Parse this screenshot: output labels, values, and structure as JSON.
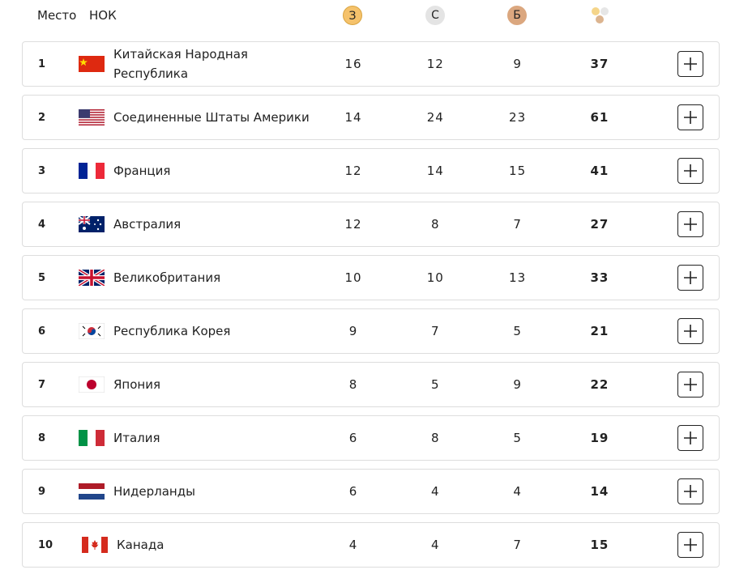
{
  "header": {
    "rank": "Место",
    "noc": "НОК",
    "gold": "З",
    "silver": "С",
    "bronze": "Б"
  },
  "table": {
    "rows": [
      [
        1,
        "Китайская Народная Республика",
        16,
        12,
        9,
        37
      ],
      [
        2,
        "Соединенные Штаты Америки",
        14,
        24,
        23,
        61
      ],
      [
        3,
        "Франция",
        12,
        14,
        15,
        41
      ],
      [
        4,
        "Австралия",
        12,
        8,
        7,
        27
      ],
      [
        5,
        "Великобритания",
        10,
        10,
        13,
        33
      ],
      [
        6,
        "Республика Корея",
        9,
        7,
        5,
        21
      ],
      [
        7,
        "Япония",
        8,
        5,
        9,
        22
      ],
      [
        8,
        "Италия",
        6,
        8,
        5,
        19
      ],
      [
        9,
        "Нидерланды",
        6,
        4,
        4,
        14
      ],
      [
        10,
        "Канада",
        4,
        4,
        7,
        15
      ]
    ]
  }
}
